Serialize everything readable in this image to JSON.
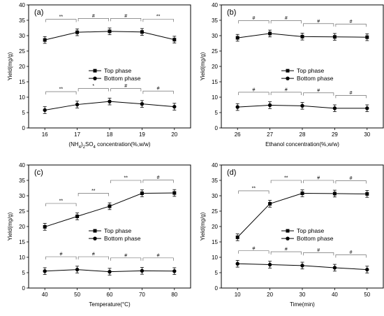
{
  "chart_data": [
    {
      "panel_label": "(a)",
      "type": "line",
      "x": [
        16,
        17,
        18,
        19,
        20
      ],
      "xlim": [
        15.5,
        20.5
      ],
      "x_ticks": [
        "16",
        "17",
        "18",
        "19",
        "20"
      ],
      "xlabel": "(NH4)2SO4 concentration(%,w/w)",
      "ylabel": "Yield(mg/g)",
      "ylim": [
        0,
        40
      ],
      "y_ticks": [
        "0",
        "5",
        "10",
        "15",
        "20",
        "25",
        "30",
        "35",
        "40"
      ],
      "legend": "center",
      "series": [
        {
          "name": "Top phase",
          "marker": "square",
          "values": [
            28.6,
            31.1,
            31.4,
            31.2,
            28.7
          ]
        },
        {
          "name": "Bottom phase",
          "marker": "circle",
          "values": [
            5.8,
            7.6,
            8.6,
            7.8,
            6.9
          ]
        }
      ],
      "annotations": {
        "top": [
          "**",
          "#",
          "#",
          "**"
        ],
        "bottom": [
          "**",
          "*",
          "#",
          "#"
        ]
      }
    },
    {
      "panel_label": "(b)",
      "type": "line",
      "x": [
        26,
        27,
        28,
        29,
        30
      ],
      "xlim": [
        25.5,
        30.5
      ],
      "x_ticks": [
        "26",
        "27",
        "28",
        "29",
        "30"
      ],
      "xlabel": "Ethanol concentration(%,w/w)",
      "ylabel": "Yield(mg/g)",
      "ylim": [
        0,
        40
      ],
      "y_ticks": [
        "0",
        "5",
        "10",
        "15",
        "20",
        "25",
        "30",
        "35",
        "40"
      ],
      "legend": "center",
      "series": [
        {
          "name": "Top phase",
          "marker": "square",
          "values": [
            29.3,
            30.7,
            29.7,
            29.6,
            29.5
          ]
        },
        {
          "name": "Bottom phase",
          "marker": "circle",
          "values": [
            6.8,
            7.4,
            7.2,
            6.4,
            6.4
          ]
        }
      ],
      "annotations": {
        "top": [
          "#",
          "#",
          "#",
          "#"
        ],
        "bottom": [
          "#",
          "#",
          "#",
          "#"
        ]
      }
    },
    {
      "panel_label": "(c)",
      "type": "line",
      "x": [
        40,
        50,
        60,
        70,
        80
      ],
      "xlim": [
        35,
        85
      ],
      "x_ticks": [
        "40",
        "50",
        "60",
        "70",
        "80"
      ],
      "xlabel": "Temperature(°C)",
      "ylabel": "Yield(mg/g)",
      "ylim": [
        0,
        40
      ],
      "y_ticks": [
        "0",
        "5",
        "10",
        "15",
        "20",
        "25",
        "30",
        "35",
        "40"
      ],
      "legend": "center",
      "series": [
        {
          "name": "Top phase",
          "marker": "square",
          "values": [
            19.9,
            23.3,
            26.6,
            30.8,
            30.9
          ]
        },
        {
          "name": "Bottom phase",
          "marker": "circle",
          "values": [
            5.5,
            6.0,
            5.3,
            5.6,
            5.5
          ]
        }
      ],
      "annotations": {
        "top": [
          "**",
          "**",
          "**",
          "#"
        ],
        "bottom": [
          "#",
          "#",
          "#",
          "#"
        ]
      }
    },
    {
      "panel_label": "(d)",
      "type": "line",
      "x": [
        10,
        20,
        30,
        40,
        50
      ],
      "xlim": [
        5,
        55
      ],
      "x_ticks": [
        "10",
        "20",
        "30",
        "40",
        "50"
      ],
      "xlabel": "Time(min)",
      "ylabel": "Yield(mg/g)",
      "ylim": [
        0,
        40
      ],
      "y_ticks": [
        "0",
        "5",
        "10",
        "15",
        "20",
        "25",
        "30",
        "35",
        "40"
      ],
      "legend": "center",
      "series": [
        {
          "name": "Top phase",
          "marker": "square",
          "values": [
            16.5,
            27.4,
            30.8,
            30.7,
            30.6
          ]
        },
        {
          "name": "Bottom phase",
          "marker": "circle",
          "values": [
            7.9,
            7.6,
            7.3,
            6.6,
            6.0
          ]
        }
      ],
      "annotations": {
        "top": [
          "**",
          "**",
          "#",
          "#"
        ],
        "bottom": [
          "#",
          "#",
          "#",
          "#"
        ]
      }
    }
  ]
}
